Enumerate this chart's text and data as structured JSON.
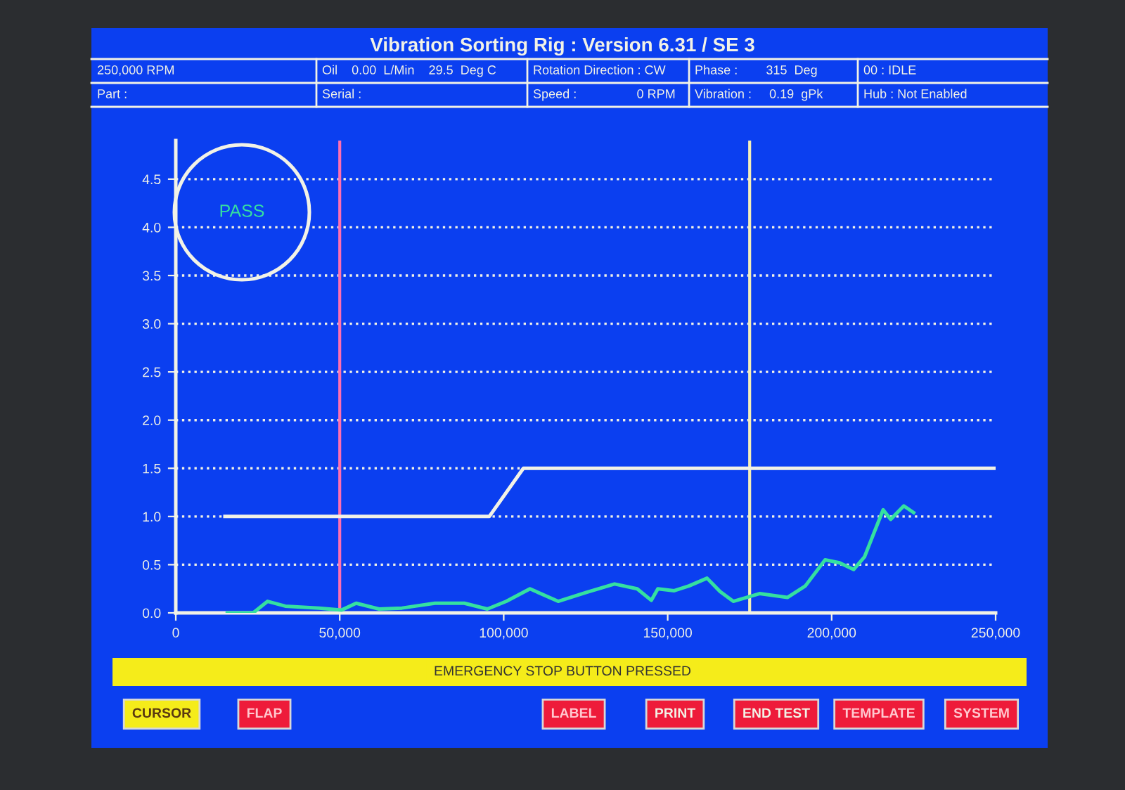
{
  "chart_data": {
    "type": "line",
    "title": "Vibration Sorting Rig : Version 6.31 / SE 3",
    "x": [
      15700,
      23600,
      28000,
      33400,
      43700,
      50600,
      55000,
      62000,
      69000,
      79000,
      88000,
      95000,
      100800,
      108000,
      116600,
      125000,
      133800,
      140700,
      145000,
      147000,
      152000,
      156500,
      162000,
      166000,
      170000,
      178000,
      186500,
      192000,
      198000,
      202400,
      206700,
      210000,
      215700,
      218000,
      222000,
      225000
    ],
    "series": [
      {
        "color": "#35e0a0",
        "values": [
          0.0,
          0.0,
          0.12,
          0.07,
          0.05,
          0.03,
          0.1,
          0.04,
          0.05,
          0.1,
          0.1,
          0.04,
          0.12,
          0.25,
          0.12,
          0.21,
          0.3,
          0.25,
          0.13,
          0.25,
          0.23,
          0.28,
          0.36,
          0.22,
          0.12,
          0.2,
          0.16,
          0.28,
          0.55,
          0.52,
          0.45,
          0.58,
          1.07,
          0.97,
          1.11,
          1.04
        ]
      },
      {
        "type": "line",
        "color": "#f2f2e6",
        "x": [
          15000,
          95600,
          106000,
          250000
        ],
        "values": [
          1.0,
          1.0,
          1.5,
          1.5
        ]
      }
    ],
    "xlim": [
      0,
      250000
    ],
    "ylim": [
      0,
      4.9
    ],
    "xticks": [
      0,
      {
        "value": 50000,
        "label": "50,000"
      },
      {
        "value": 100000,
        "label": "100,000"
      },
      {
        "value": 150000,
        "label": "150,000"
      },
      {
        "value": 200000,
        "label": "200,000"
      },
      {
        "value": 250000,
        "label": "250,000"
      }
    ],
    "yticks": [
      {
        "value": 0,
        "label": "0.0"
      },
      0.5,
      {
        "value": 1,
        "label": "1.0"
      },
      1.5,
      {
        "value": 2,
        "label": "2.0"
      },
      2.5,
      {
        "value": 3,
        "label": "3.0"
      },
      3.5,
      {
        "value": 4,
        "label": "4.0"
      },
      4.5
    ],
    "grid": "y",
    "line_style": "solid",
    "marker": "none",
    "ref_lines": [
      {
        "axis": "x",
        "value": 50000,
        "color": "#ff6fb0"
      },
      {
        "axis": "x",
        "value": 175000,
        "color": "#f5efb8"
      }
    ],
    "annotations": [
      "250,000 RPM",
      "Oil    0.00  L/Min    29.5  Deg C",
      "Rotation Direction : CW",
      "Phase :        315  Deg",
      "00 : IDLE",
      "Part :",
      "Serial :",
      "Speed :                 0 RPM",
      "Vibration :     0.19  gPk",
      "Hub : Not Enabled",
      "PASS",
      "EMERGENCY STOP BUTTON PRESSED",
      "CURSOR",
      "FLAP",
      "LABEL",
      "PRINT",
      "END TEST",
      "TEMPLATE",
      "SYSTEM"
    ]
  }
}
